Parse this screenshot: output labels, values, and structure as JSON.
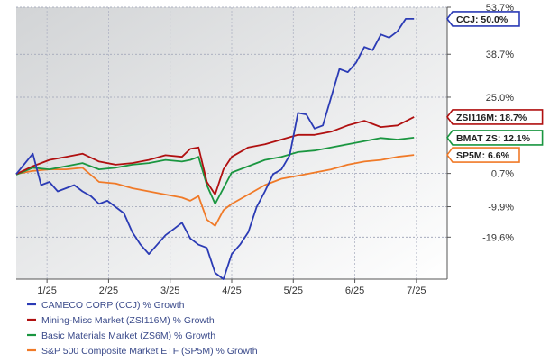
{
  "chart_data": {
    "type": "line",
    "x_labels": [
      "1/25",
      "2/25",
      "3/25",
      "4/25",
      "5/25",
      "6/25",
      "7/25"
    ],
    "y_ticks": [
      {
        "value": 53.7,
        "label": "53.7%"
      },
      {
        "value": 38.7,
        "label": "38.7%"
      },
      {
        "value": 25.0,
        "label": "25.0%"
      },
      {
        "value": 0.7,
        "label": "0.7%"
      },
      {
        "value": -9.9,
        "label": "-9.9%"
      },
      {
        "value": -19.6,
        "label": "-19.6%"
      }
    ],
    "ylim": [
      -33,
      53.7
    ],
    "xlim": [
      0,
      26
    ],
    "grid": true,
    "series": [
      {
        "name": "CAMECO CORP (CCJ) % Growth",
        "badge": "CCJ: 50.0%",
        "end_value": 50.0,
        "color": "#2b3bb5",
        "x": [
          0,
          1,
          1.5,
          2,
          2.5,
          3,
          3.5,
          4,
          4.5,
          5,
          5.5,
          6,
          6.5,
          7,
          7.5,
          8,
          8.5,
          9,
          9.5,
          10,
          10.5,
          11,
          11.5,
          12,
          12.5,
          13,
          13.5,
          14,
          14.5,
          15,
          15.5,
          16,
          16.5,
          17,
          17.5,
          18,
          18.5,
          19,
          19.5,
          20,
          20.5,
          21,
          21.5,
          22,
          22.5,
          23,
          23.5,
          24
        ],
        "y": [
          0.5,
          7.0,
          -3.0,
          -2.0,
          -5.0,
          -4.0,
          -3.0,
          -5.0,
          -6.5,
          -9.0,
          -8.0,
          -10.0,
          -12.0,
          -18.0,
          -22.0,
          -25.0,
          -22.0,
          -19.0,
          -17.0,
          -15.0,
          -20.0,
          -22.0,
          -23.0,
          -31.0,
          -33.0,
          -25.0,
          -22.0,
          -18.0,
          -10.0,
          -5.0,
          0.5,
          2.0,
          6.5,
          20.0,
          19.5,
          15.0,
          16.0,
          25.0,
          34.0,
          33.0,
          36.0,
          41.0,
          40.0,
          45.0,
          44.0,
          46.0,
          50.0,
          50.0
        ]
      },
      {
        "name": "Mining-Misc Market (ZSI116M) % Growth",
        "badge": "ZSI116M: 18.7%",
        "end_value": 18.7,
        "color": "#b01010",
        "x": [
          0,
          1,
          2,
          3,
          4,
          5,
          6,
          7,
          8,
          9,
          10,
          10.5,
          11,
          11.5,
          12,
          12.5,
          13,
          14,
          15,
          16,
          17,
          18,
          19,
          20,
          21,
          22,
          23,
          24
        ],
        "y": [
          0.5,
          3.0,
          5.0,
          6.0,
          7.0,
          4.5,
          3.5,
          4.0,
          5.0,
          6.5,
          6.0,
          8.5,
          9.0,
          -2.0,
          -6.0,
          2.0,
          6.0,
          9.0,
          10.0,
          11.5,
          13.0,
          13.0,
          14.0,
          16.0,
          17.5,
          15.5,
          16.0,
          18.7
        ]
      },
      {
        "name": "Basic Materials Market (ZS6M) % Growth",
        "badge": "BMAT ZS: 12.1%",
        "end_value": 12.1,
        "color": "#1a9640",
        "x": [
          0,
          1,
          2,
          3,
          4,
          5,
          6,
          7,
          8,
          9,
          10,
          10.5,
          11,
          11.5,
          12,
          12.5,
          13,
          14,
          15,
          16,
          17,
          18,
          19,
          20,
          21,
          22,
          23,
          24
        ],
        "y": [
          0.3,
          2.5,
          2.0,
          3.0,
          4.0,
          2.0,
          2.5,
          3.5,
          4.0,
          5.0,
          4.5,
          5.0,
          6.0,
          -3.0,
          -9.0,
          -4.0,
          1.0,
          3.0,
          5.0,
          6.0,
          7.5,
          8.0,
          9.0,
          10.0,
          11.0,
          12.0,
          11.5,
          12.1
        ]
      },
      {
        "name": "S&P 500 Composite Market ETF (SP5M) % Growth",
        "badge": "SP5M: 6.6%",
        "end_value": 6.6,
        "color": "#f07a28",
        "x": [
          0,
          1,
          2,
          3,
          4,
          5,
          6,
          7,
          8,
          9,
          10,
          10.5,
          11,
          11.5,
          12,
          12.5,
          13,
          14,
          15,
          16,
          17,
          18,
          19,
          20,
          21,
          22,
          23,
          24
        ],
        "y": [
          0.5,
          1.5,
          2.0,
          2.0,
          2.5,
          -2.0,
          -2.5,
          -4.0,
          -5.0,
          -6.0,
          -7.0,
          -8.0,
          -6.5,
          -14.0,
          -16.0,
          -11.0,
          -9.0,
          -6.0,
          -3.0,
          -1.0,
          0.0,
          1.0,
          2.0,
          3.5,
          4.5,
          5.0,
          6.0,
          6.6
        ]
      }
    ]
  }
}
